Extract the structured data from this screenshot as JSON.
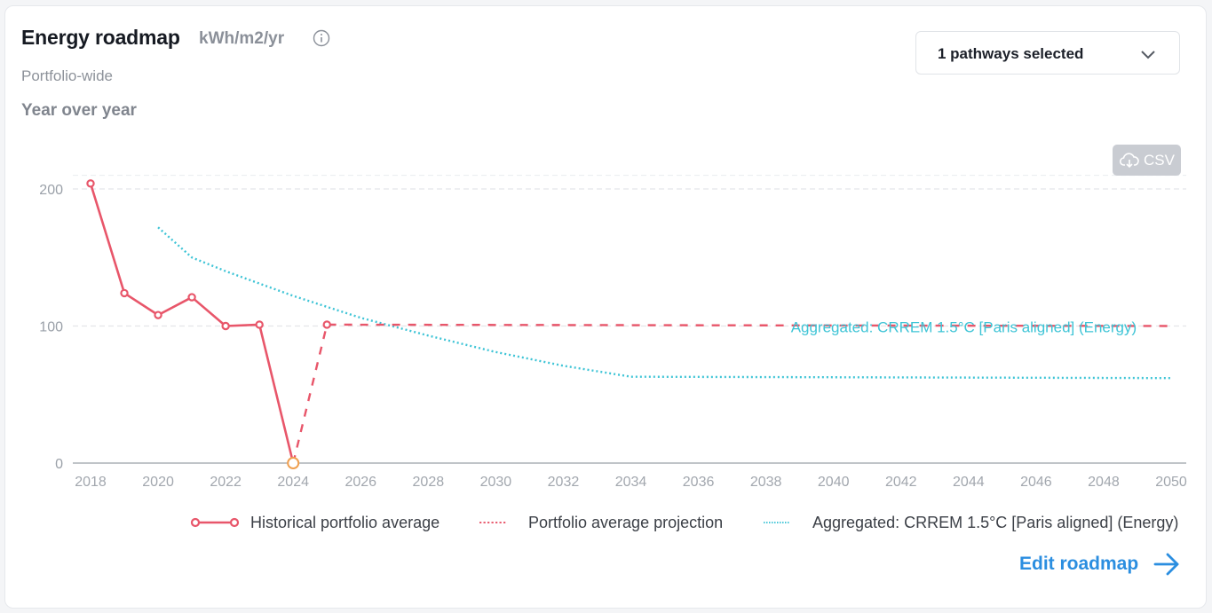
{
  "header": {
    "title": "Energy roadmap",
    "unit": "kWh/m2/yr",
    "subtitle": "Portfolio-wide",
    "period": "Year over year"
  },
  "pathway_dropdown": {
    "label": "1 pathways selected",
    "icon": "chevron-down-icon"
  },
  "csv_button": {
    "label": "CSV",
    "icon": "cloud-download-icon"
  },
  "edit_link": {
    "label": "Edit roadmap",
    "icon": "arrow-right-icon"
  },
  "colors": {
    "historical": "#e8566a",
    "projection": "#e8566a",
    "pathway": "#3ec4d6",
    "accent_link": "#2b8ee0",
    "zero_point": "#f0a050"
  },
  "chart_data": {
    "type": "line",
    "x_ticks": [
      "2018",
      "2020",
      "2022",
      "2024",
      "2026",
      "2028",
      "2030",
      "2032",
      "2034",
      "2036",
      "2038",
      "2040",
      "2042",
      "2044",
      "2046",
      "2048",
      "2050"
    ],
    "y_ticks": [
      "0",
      "100",
      "200"
    ],
    "xlim": [
      2018,
      2050
    ],
    "ylim": [
      0,
      210
    ],
    "grid": "horizontal dashed",
    "legend_position": "bottom-right",
    "series": [
      {
        "name": "Historical portfolio average",
        "style": "solid with circle markers",
        "x": [
          2018,
          2019,
          2020,
          2021,
          2022,
          2023,
          2024
        ],
        "y": [
          204,
          124,
          108,
          121,
          100,
          101,
          0
        ]
      },
      {
        "name": "Portfolio average projection",
        "style": "dashed",
        "x": [
          2024,
          2025,
          2050
        ],
        "y": [
          0,
          101,
          100
        ]
      },
      {
        "name": "Aggregated: CRREM 1.5°C [Paris aligned] (Energy)",
        "style": "dotted",
        "x": [
          2020,
          2021,
          2022,
          2024,
          2026,
          2028,
          2030,
          2032,
          2034,
          2050
        ],
        "y": [
          172,
          150,
          140,
          122,
          106,
          93,
          81,
          71,
          63,
          62
        ]
      }
    ],
    "annotations": [
      {
        "text": "Aggregated: CRREM 1.5°C [Paris aligned] (Energy)",
        "x": 2040,
        "y": 100
      }
    ]
  }
}
